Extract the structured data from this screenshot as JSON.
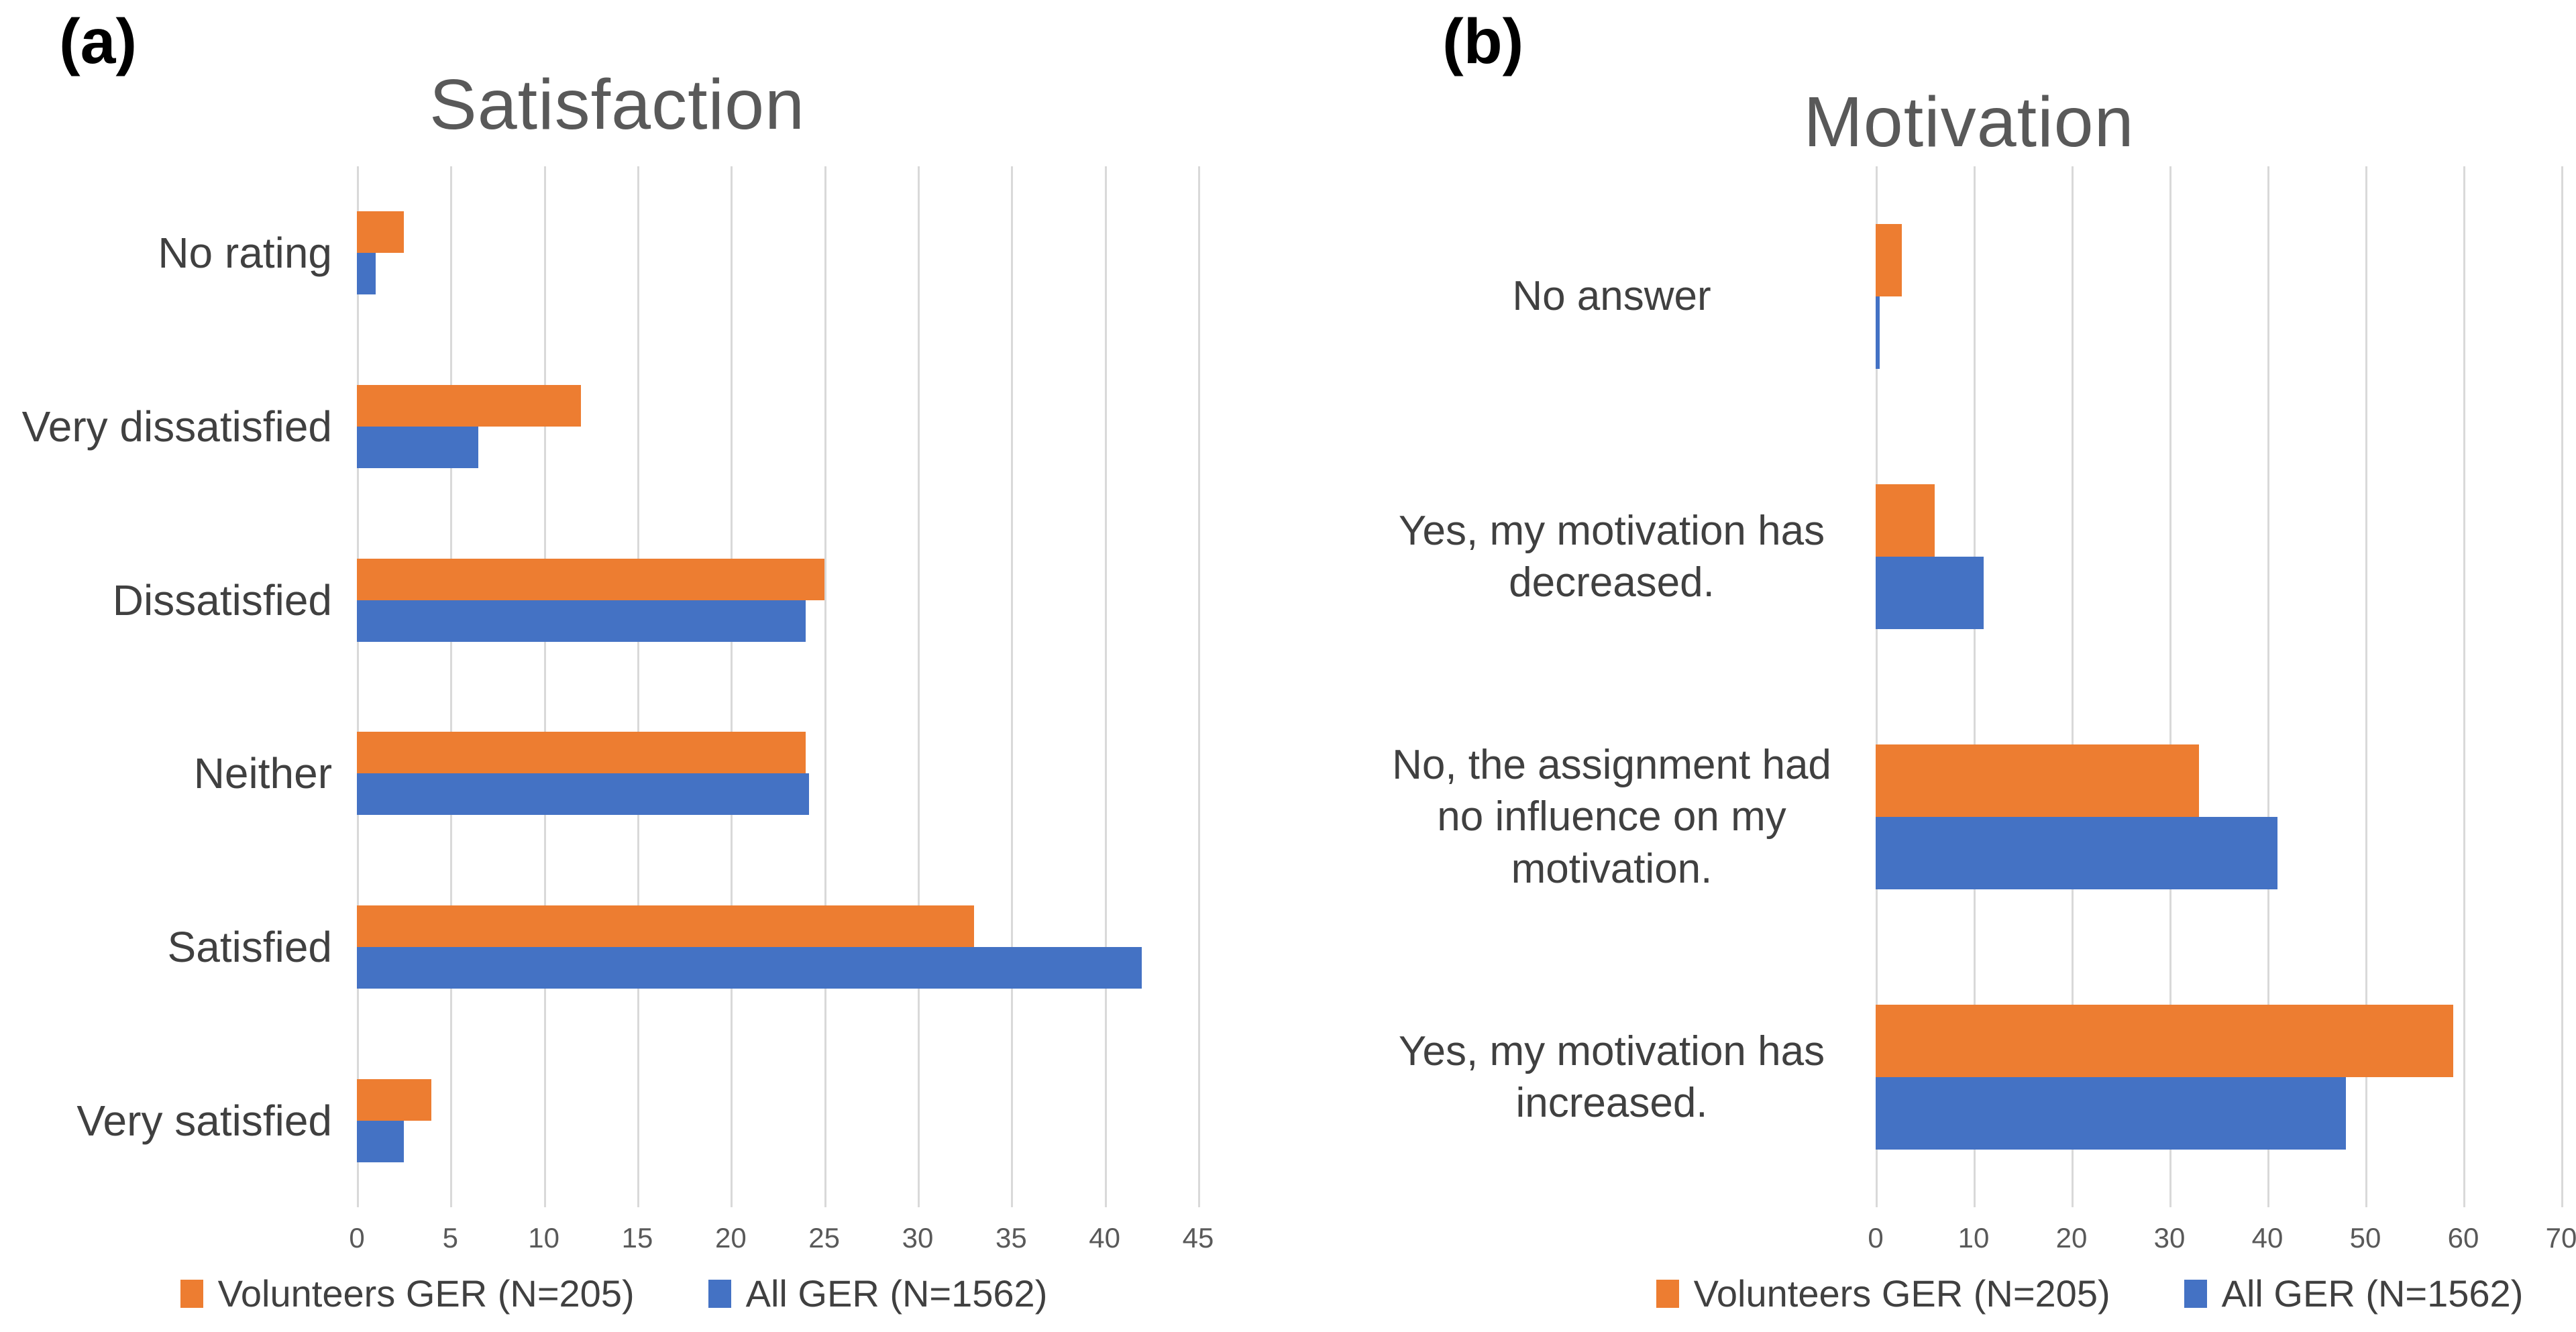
{
  "page": {
    "background": "#ffffff"
  },
  "colors": {
    "volunteers_orange": "#ED7D31",
    "all_blue": "#4472C4",
    "gridline": "#D9D9D9",
    "title_gray": "#595959",
    "label_gray": "#404040"
  },
  "legend": {
    "items": [
      {
        "label": "Volunteers GER (N=205)",
        "color": "#ED7D31"
      },
      {
        "label": "All GER (N=1562)",
        "color": "#4472C4"
      }
    ]
  },
  "chart_data": [
    {
      "type": "bar",
      "orientation": "horizontal",
      "panel_letter": "(a)",
      "title": "Satisfaction",
      "categories": [
        "No rating",
        "Very dissatisfied",
        "Dissatisfied",
        "Neither",
        "Satisfied",
        "Very satisfied"
      ],
      "series": [
        {
          "name": "Volunteers GER (N=205)",
          "color": "#ED7D31",
          "values": [
            2.5,
            12,
            25,
            24,
            33,
            4
          ]
        },
        {
          "name": "All GER (N=1562)",
          "color": "#4472C4",
          "values": [
            1,
            6.5,
            24,
            24.2,
            42,
            2.5
          ]
        }
      ],
      "xlabel": "",
      "ylabel": "",
      "xlim": [
        0,
        45
      ],
      "xticks": [
        0,
        5,
        10,
        15,
        20,
        25,
        30,
        35,
        40,
        45
      ],
      "grid": true,
      "legend_position": "bottom"
    },
    {
      "type": "bar",
      "orientation": "horizontal",
      "panel_letter": "(b)",
      "title": "Motivation",
      "categories": [
        "No answer",
        "Yes, my motivation has decreased.",
        "No, the assignment had no influence on my motivation.",
        "Yes, my motivation has increased."
      ],
      "series": [
        {
          "name": "Volunteers GER (N=205)",
          "color": "#ED7D31",
          "values": [
            2.7,
            6,
            33,
            59
          ]
        },
        {
          "name": "All GER (N=1562)",
          "color": "#4472C4",
          "values": [
            0.4,
            11,
            41,
            48
          ]
        }
      ],
      "xlabel": "",
      "ylabel": "",
      "xlim": [
        0,
        70
      ],
      "xticks": [
        0,
        10,
        20,
        30,
        40,
        50,
        60,
        70
      ],
      "grid": true,
      "legend_position": "bottom"
    }
  ]
}
